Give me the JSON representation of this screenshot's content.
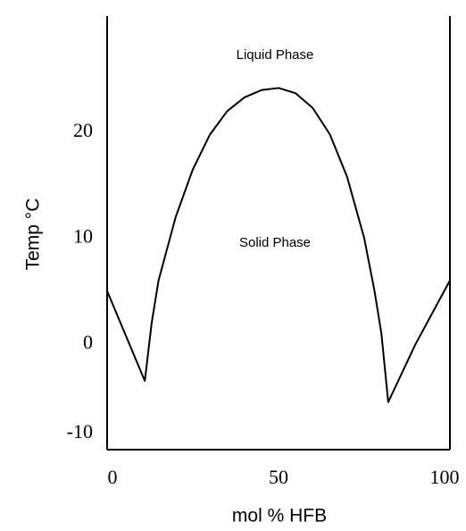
{
  "chart_data": {
    "type": "line",
    "xlabel": "mol % HFB",
    "ylabel": "Temp °C",
    "annotations": [
      "Liquid Phase",
      "Solid Phase"
    ],
    "x": [
      0,
      11,
      13,
      15,
      20,
      25,
      30,
      35,
      40,
      45,
      50,
      55,
      60,
      65,
      70,
      75,
      78,
      80,
      82,
      90,
      100
    ],
    "series": [
      {
        "name": "liquidus",
        "color": "#000000",
        "values": [
          5,
          -3.5,
          2,
          6,
          12,
          16.5,
          19.8,
          22,
          23.3,
          24,
          24.2,
          23.7,
          22.3,
          19.8,
          15.8,
          10,
          5,
          1,
          -5.5,
          0,
          6
        ]
      }
    ],
    "xlim": [
      0,
      100
    ],
    "xticks": [
      0,
      50,
      100
    ],
    "ylim": [
      -10,
      31
    ],
    "yticks": [
      -10,
      0,
      10,
      20
    ]
  }
}
